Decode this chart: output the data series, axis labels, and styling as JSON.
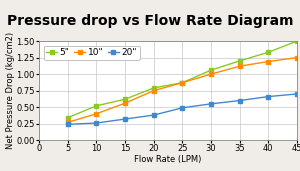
{
  "title": "Pressure drop vs Flow Rate Diagram",
  "xlabel": "Flow Rate (LPM)",
  "ylabel": "Net Pressure Drop (kg/cm2)",
  "xlim": [
    0,
    45
  ],
  "ylim": [
    0.0,
    1.5
  ],
  "yticks": [
    0.0,
    0.25,
    0.5,
    0.75,
    1.0,
    1.25,
    1.5
  ],
  "xticks": [
    0,
    5,
    10,
    15,
    20,
    25,
    30,
    35,
    40,
    45
  ],
  "series": [
    {
      "label": "5\"",
      "color": "#88cc22",
      "x": [
        5,
        10,
        15,
        20,
        25,
        30,
        35,
        40,
        45
      ],
      "y": [
        0.34,
        0.52,
        0.62,
        0.79,
        0.87,
        1.06,
        1.2,
        1.33,
        1.5
      ]
    },
    {
      "label": "10\"",
      "color": "#ff8c00",
      "x": [
        5,
        10,
        15,
        20,
        25,
        30,
        35,
        40,
        45
      ],
      "y": [
        0.27,
        0.4,
        0.56,
        0.75,
        0.87,
        1.0,
        1.12,
        1.19,
        1.25
      ]
    },
    {
      "label": "20\"",
      "color": "#4488cc",
      "x": [
        5,
        10,
        15,
        20,
        25,
        30,
        35,
        40,
        45
      ],
      "y": [
        0.24,
        0.26,
        0.32,
        0.38,
        0.49,
        0.55,
        0.6,
        0.66,
        0.7
      ]
    }
  ],
  "title_fontsize": 10,
  "label_fontsize": 6,
  "tick_fontsize": 6,
  "legend_fontsize": 6.5,
  "background_color": "#f0ede8",
  "plot_bg_color": "#ffffff",
  "title_bg_color": "#ffffff"
}
